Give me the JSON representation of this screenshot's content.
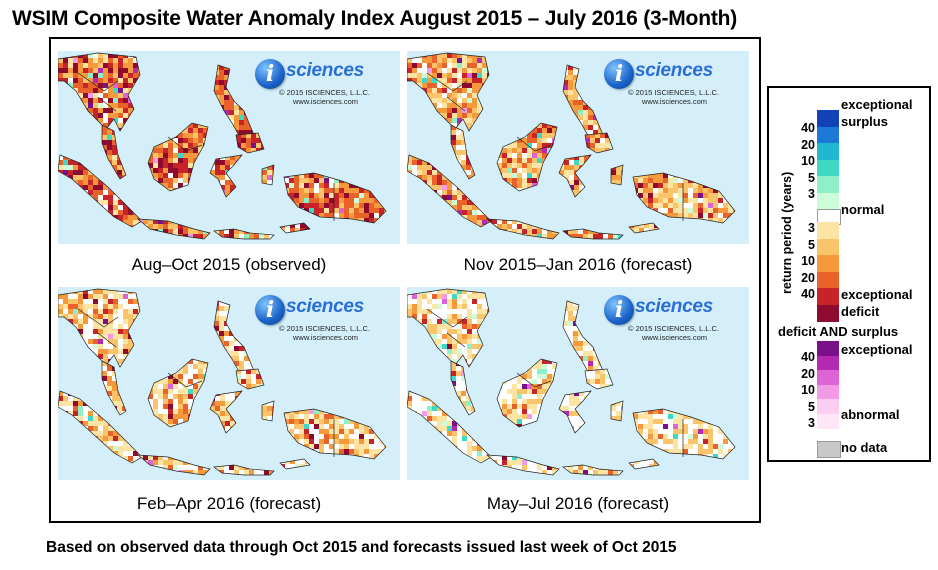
{
  "title": "WSIM Composite Water Anomaly Index August 2015 – July 2016 (3-Month)",
  "footer": "Based on observed data through Oct 2015 and forecasts issued last week of Oct 2015",
  "logo": {
    "letter": "i",
    "word": "sciences",
    "copyright": "© 2015 ISCIENCES, L.L.C.",
    "url": "www.isciences.com"
  },
  "panels": [
    {
      "caption": "Aug–Oct 2015 (observed)",
      "intensity": "severe"
    },
    {
      "caption": "Nov 2015–Jan 2016 (forecast)",
      "intensity": "moderate"
    },
    {
      "caption": "Feb–Apr 2016 (forecast)",
      "intensity": "mixed"
    },
    {
      "caption": "May–Jul 2016 (forecast)",
      "intensity": "mild"
    }
  ],
  "legend": {
    "axis_label": "return period (years)",
    "surplus_label_1": "exceptional",
    "surplus_label_2": "surplus",
    "normal_label": "normal",
    "deficit_label_1": "exceptional",
    "deficit_label_2": "deficit",
    "both_title": "deficit AND surplus",
    "both_top": "exceptional",
    "both_bottom": "abnormal",
    "no_data": "no data",
    "surplus_ticks": [
      "40",
      "20",
      "10",
      "5",
      "3"
    ],
    "deficit_ticks": [
      "3",
      "5",
      "10",
      "20",
      "40"
    ],
    "both_ticks": [
      "40",
      "20",
      "10",
      "5",
      "3"
    ],
    "surplus_colors": [
      "#1242b5",
      "#1d79d6",
      "#1fb8d0",
      "#3fd8c4",
      "#8ff0c8",
      "#cdfcd9"
    ],
    "deficit_colors": [
      "#fbe4a4",
      "#fbc36a",
      "#f59a3c",
      "#e8622a",
      "#c7242a",
      "#8e0b2f"
    ],
    "both_colors": [
      "#7a0f8a",
      "#b32ab1",
      "#dd64d4",
      "#f29ae6",
      "#fbcdf1",
      "#fde6f8"
    ],
    "normal_color": "#ffffff",
    "no_data_color": "#c8c8c8"
  }
}
